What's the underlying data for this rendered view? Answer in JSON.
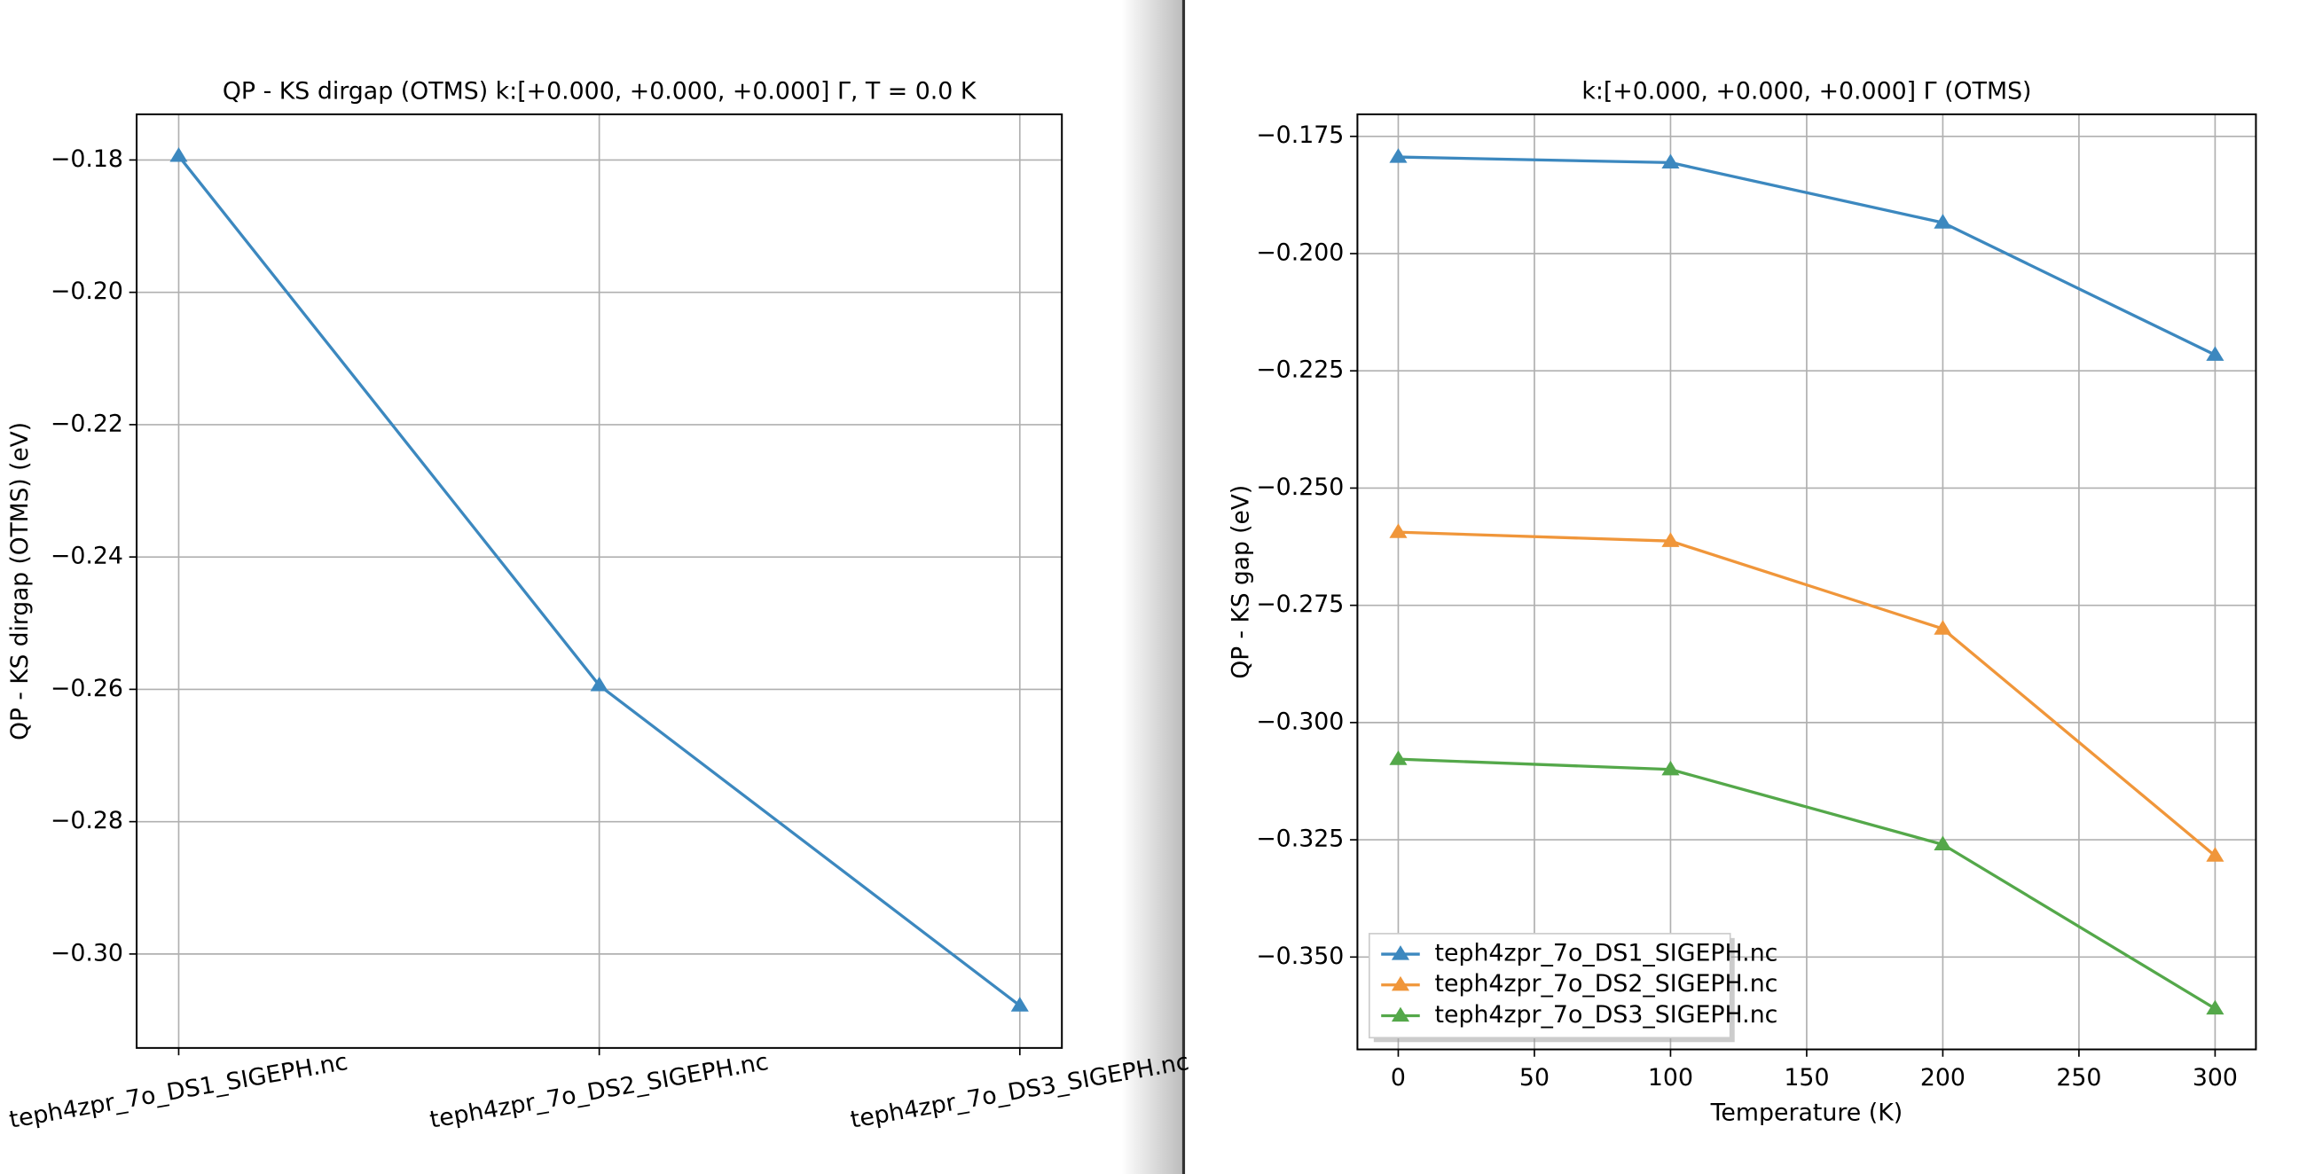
{
  "chart_data": [
    {
      "type": "line",
      "title": "QP - KS dirgap (OTMS) k:[+0.000, +0.000, +0.000] Γ, T = 0.0 K",
      "ylabel": "QP - KS dirgap (OTMS) (eV)",
      "categories": [
        "teph4zpr_7o_DS1_SIGEPH.nc",
        "teph4zpr_7o_DS2_SIGEPH.nc",
        "teph4zpr_7o_DS3_SIGEPH.nc"
      ],
      "values": [
        -0.1794,
        -0.2594,
        -0.3078
      ],
      "color": "#3c88bf",
      "ylim": [
        -0.3142,
        -0.1731
      ],
      "yticks": [
        {
          "value": -0.3,
          "label": "−0.30"
        },
        {
          "value": -0.28,
          "label": "−0.28"
        },
        {
          "value": -0.26,
          "label": "−0.26"
        },
        {
          "value": -0.24,
          "label": "−0.24"
        },
        {
          "value": -0.22,
          "label": "−0.22"
        },
        {
          "value": -0.2,
          "label": "−0.20"
        },
        {
          "value": -0.18,
          "label": "−0.18"
        }
      ],
      "grid": true
    },
    {
      "type": "line",
      "title": "k:[+0.000, +0.000, +0.000] Γ (OTMS)",
      "xlabel": "Temperature (K)",
      "ylabel": "QP - KS gap (eV)",
      "x": [
        0,
        100,
        200,
        300
      ],
      "series": [
        {
          "name": "teph4zpr_7o_DS1_SIGEPH.nc",
          "color": "#3c88bf",
          "values": [
            -0.1794,
            -0.1806,
            -0.1934,
            -0.2216
          ]
        },
        {
          "name": "teph4zpr_7o_DS2_SIGEPH.nc",
          "color": "#f0963a",
          "values": [
            -0.2594,
            -0.2613,
            -0.28,
            -0.3284
          ]
        },
        {
          "name": "teph4zpr_7o_DS3_SIGEPH.nc",
          "color": "#54a84a",
          "values": [
            -0.3078,
            -0.31,
            -0.326,
            -0.361
          ]
        }
      ],
      "xlim": [
        -15,
        315
      ],
      "xticks": [
        0,
        50,
        100,
        150,
        200,
        250,
        300
      ],
      "ylim": [
        -0.3697,
        -0.1703
      ],
      "yticks": [
        {
          "value": -0.35,
          "label": "−0.350"
        },
        {
          "value": -0.325,
          "label": "−0.325"
        },
        {
          "value": -0.3,
          "label": "−0.300"
        },
        {
          "value": -0.275,
          "label": "−0.275"
        },
        {
          "value": -0.25,
          "label": "−0.250"
        },
        {
          "value": -0.225,
          "label": "−0.225"
        },
        {
          "value": -0.2,
          "label": "−0.200"
        },
        {
          "value": -0.175,
          "label": "−0.175"
        }
      ],
      "grid": true,
      "legend": "lower left"
    }
  ]
}
